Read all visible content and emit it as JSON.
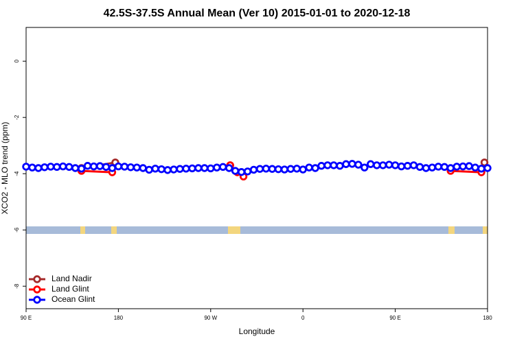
{
  "chart_data": {
    "type": "line",
    "title": "42.5S-37.5S Annual Mean (Ver 10)   2015-01-01 to 2020-12-18",
    "x_label": "Longitude",
    "y_label": "XCO2 - MLO trend (ppm)",
    "xlim": [
      90,
      540
    ],
    "ylim": [
      -8.8,
      1.2
    ],
    "xticks": [
      {
        "value": 90,
        "label": "90 E"
      },
      {
        "value": 180,
        "label": "180"
      },
      {
        "value": 270,
        "label": "90 W"
      },
      {
        "value": 360,
        "label": "0"
      },
      {
        "value": 450,
        "label": "90 E"
      },
      {
        "value": 540,
        "label": "180"
      }
    ],
    "yticks": [
      0,
      -2,
      -4,
      -6,
      -8
    ],
    "legend": "bottom-left",
    "series": [
      {
        "name": "Land Nadir",
        "color": "#a52a2a",
        "x": [
          144,
          177,
          289,
          537
        ],
        "values": [
          -3.8,
          -3.6,
          -3.7,
          -3.6
        ]
      },
      {
        "name": "Land Glint",
        "color": "#ff0000",
        "x": [
          144,
          174,
          289,
          296,
          302,
          504,
          534
        ],
        "values": [
          -3.9,
          -3.95,
          -3.7,
          -3.95,
          -4.1,
          -3.9,
          -3.95
        ]
      },
      {
        "name": "Ocean Glint",
        "color": "#0000ff",
        "x": [
          90,
          96,
          102,
          108,
          114,
          120,
          126,
          132,
          138,
          144,
          150,
          156,
          162,
          168,
          174,
          180,
          186,
          192,
          198,
          204,
          210,
          216,
          222,
          228,
          234,
          240,
          246,
          252,
          258,
          264,
          270,
          276,
          282,
          288,
          294,
          300,
          306,
          312,
          318,
          324,
          330,
          336,
          342,
          348,
          354,
          360,
          366,
          372,
          378,
          384,
          390,
          396,
          402,
          408,
          414,
          420,
          426,
          432,
          438,
          444,
          450,
          456,
          462,
          468,
          474,
          480,
          486,
          492,
          498,
          504,
          510,
          516,
          522,
          528,
          534,
          540
        ],
        "values": [
          -3.75,
          -3.78,
          -3.8,
          -3.77,
          -3.75,
          -3.76,
          -3.74,
          -3.76,
          -3.8,
          -3.82,
          -3.72,
          -3.74,
          -3.73,
          -3.76,
          -3.8,
          -3.74,
          -3.75,
          -3.77,
          -3.78,
          -3.8,
          -3.86,
          -3.82,
          -3.84,
          -3.87,
          -3.85,
          -3.83,
          -3.82,
          -3.81,
          -3.8,
          -3.8,
          -3.81,
          -3.78,
          -3.76,
          -3.8,
          -3.9,
          -3.94,
          -3.92,
          -3.86,
          -3.83,
          -3.82,
          -3.83,
          -3.84,
          -3.85,
          -3.83,
          -3.82,
          -3.85,
          -3.78,
          -3.8,
          -3.72,
          -3.7,
          -3.7,
          -3.72,
          -3.66,
          -3.65,
          -3.68,
          -3.78,
          -3.66,
          -3.7,
          -3.7,
          -3.68,
          -3.7,
          -3.74,
          -3.72,
          -3.7,
          -3.76,
          -3.8,
          -3.78,
          -3.75,
          -3.76,
          -3.8,
          -3.75,
          -3.74,
          -3.73,
          -3.78,
          -3.82,
          -3.8
        ]
      }
    ]
  }
}
